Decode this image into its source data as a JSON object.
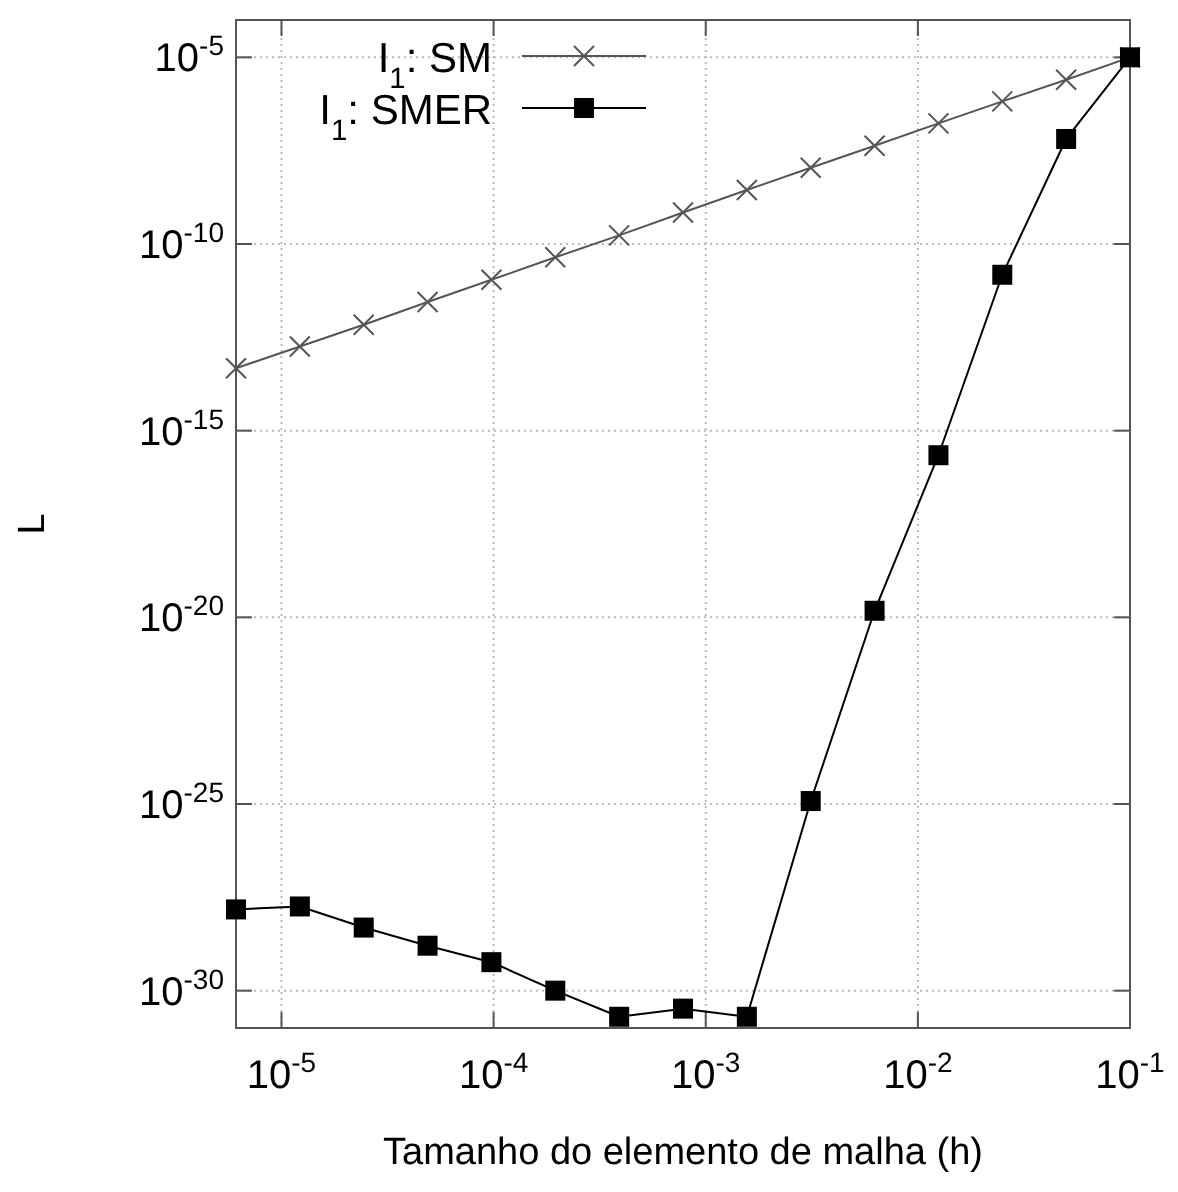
{
  "chart_data": {
    "type": "line",
    "xlabel": "Tamanho do elemento de malha (h)",
    "ylabel": "L",
    "x": [
      6.1035e-06,
      1.2207e-05,
      2.4414e-05,
      4.8828e-05,
      9.7656e-05,
      0.00019531,
      0.00039063,
      0.00078125,
      0.0015625,
      0.003125,
      0.00625,
      0.0125,
      0.025,
      0.05,
      0.1
    ],
    "series": [
      {
        "name": "I$_{1}$: SM",
        "color": "#555555",
        "marker": "cross",
        "values": [
          4.7e-14,
          1.8e-13,
          6.9e-13,
          2.8e-12,
          1.1e-11,
          4.4e-11,
          1.7e-10,
          7e-10,
          2.8e-09,
          1.1e-08,
          4.3e-08,
          1.7e-07,
          6.6e-07,
          2.5e-06,
          1e-05
        ]
      },
      {
        "name": "I$_{1}$: SMER",
        "color": "#000000",
        "marker": "square",
        "values": [
          1.5e-28,
          1.8e-28,
          4.9e-29,
          1.6e-29,
          5.8e-30,
          1e-30,
          2e-31,
          3.3e-31,
          2e-31,
          1.2e-25,
          1.5e-20,
          2.2e-16,
          1.5e-11,
          6.5e-08,
          1e-05
        ]
      }
    ],
    "log": "xy",
    "xlim": [
      6.1035e-06,
      0.1
    ],
    "ylim": [
      1e-31,
      0.0001
    ],
    "xticks": [
      {
        "value": 1e-05,
        "label": "10$^{-5}$"
      },
      {
        "value": 0.0001,
        "label": "10$^{-4}$"
      },
      {
        "value": 0.001,
        "label": "10$^{-3}$"
      },
      {
        "value": 0.01,
        "label": "10$^{-2}$"
      },
      {
        "value": 0.1,
        "label": "10$^{-1}$"
      }
    ],
    "yticks": [
      {
        "value": 1e-30,
        "label": "10$^{-30}$"
      },
      {
        "value": 1e-25,
        "label": "10$^{-25}$"
      },
      {
        "value": 1e-20,
        "label": "10$^{-20}$"
      },
      {
        "value": 1e-15,
        "label": "10$^{-15}$"
      },
      {
        "value": 1e-10,
        "label": "10$^{-10}$"
      },
      {
        "value": 1e-05,
        "label": "10$^{-5}$"
      }
    ],
    "grid": true,
    "legend": "top left",
    "line_style": "solid"
  }
}
